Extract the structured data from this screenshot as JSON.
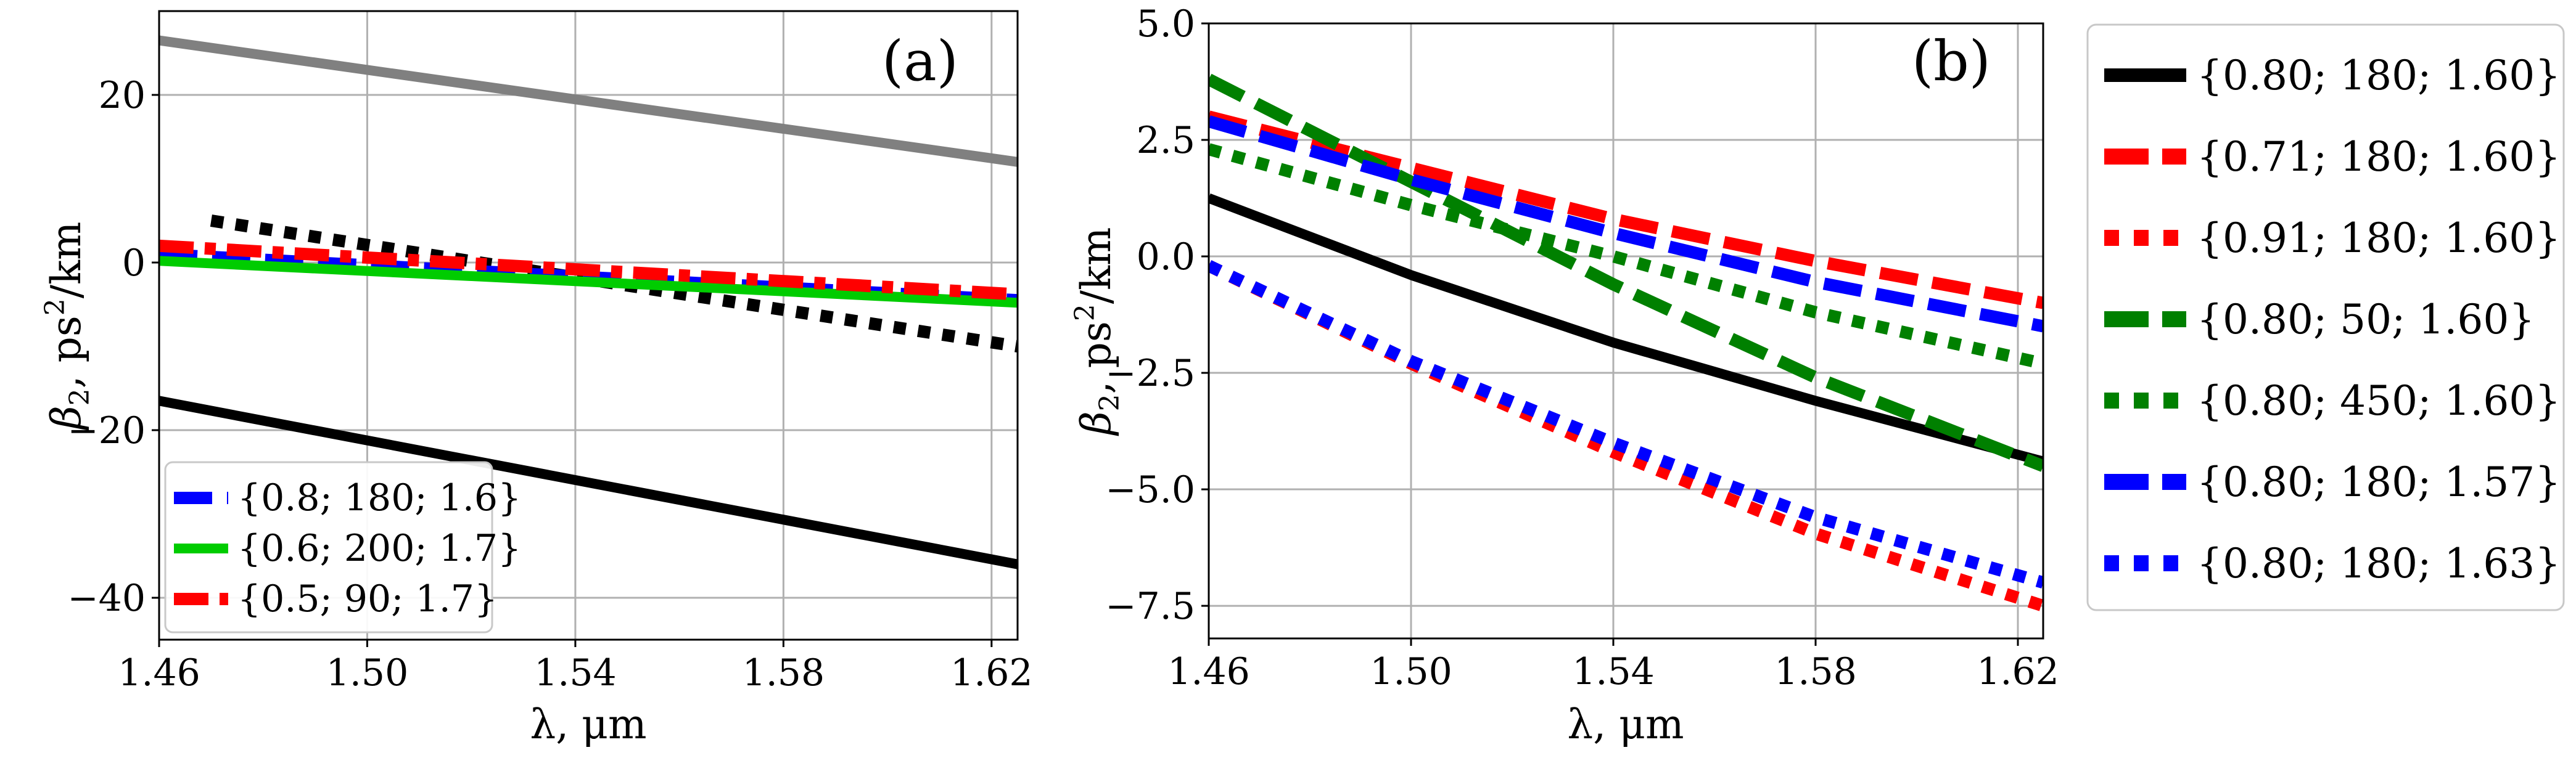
{
  "chart_data": [
    {
      "type": "line",
      "panel": "(a)",
      "xlabel": "λ, μm",
      "ylabel_main": "β",
      "ylabel_sub": "2",
      "ylabel_rest": ", ps",
      "ylabel_sup": "2",
      "ylabel_tail": "/km",
      "xlim": [
        1.46,
        1.625
      ],
      "ylim": [
        -45,
        30
      ],
      "xticks": [
        "1.46",
        "1.50",
        "1.54",
        "1.58",
        "1.62"
      ],
      "yticks": [
        "20",
        "0",
        "−20",
        "−40"
      ],
      "grid": true,
      "legend_position": "lower-left",
      "series": [
        {
          "color": "#808080",
          "style": "solid",
          "x": [
            1.46,
            1.625
          ],
          "y": [
            26.5,
            12.0
          ]
        },
        {
          "color": "#000000",
          "style": "solid",
          "x": [
            1.46,
            1.625
          ],
          "y": [
            -16.5,
            -36.0
          ]
        },
        {
          "color": "#000000",
          "style": "dotted",
          "x": [
            1.47,
            1.625
          ],
          "y": [
            5.0,
            -10.0
          ]
        },
        {
          "name": "{0.8; 180; 1.6}",
          "color": "#0000ff",
          "style": "dashed",
          "x": [
            1.46,
            1.625
          ],
          "y": [
            1.0,
            -4.5
          ]
        },
        {
          "name": "{0.6; 200; 1.7}",
          "color": "#00cc00",
          "style": "solid",
          "x": [
            1.46,
            1.625
          ],
          "y": [
            0.2,
            -4.8
          ]
        },
        {
          "name": "{0.5; 90; 1.7}",
          "color": "#ff0000",
          "style": "dashdot",
          "x": [
            1.46,
            1.625
          ],
          "y": [
            2.0,
            -3.8
          ]
        }
      ]
    },
    {
      "type": "line",
      "panel": "(b)",
      "xlabel": "λ, μm",
      "ylabel_main": "β",
      "ylabel_sub": "2",
      "ylabel_rest": ", ps",
      "ylabel_sup": "2",
      "ylabel_tail": "/km",
      "xlim": [
        1.46,
        1.625
      ],
      "ylim": [
        -8.2,
        5.0
      ],
      "xticks": [
        "1.46",
        "1.50",
        "1.54",
        "1.58",
        "1.62"
      ],
      "yticks": [
        "5.0",
        "2.5",
        "0.0",
        "−2.5",
        "−5.0",
        "−7.5"
      ],
      "grid": true,
      "legend_position": "outside-right",
      "series": [
        {
          "name": "{0.80; 180; 1.60}",
          "color": "#000000",
          "style": "solid",
          "x": [
            1.46,
            1.5,
            1.54,
            1.58,
            1.625
          ],
          "y": [
            1.25,
            -0.4,
            -1.85,
            -3.1,
            -4.4
          ]
        },
        {
          "name": "{0.71; 180; 1.60}",
          "color": "#ff0000",
          "style": "dashed",
          "x": [
            1.46,
            1.5,
            1.54,
            1.58,
            1.625
          ],
          "y": [
            3.0,
            1.9,
            0.8,
            -0.1,
            -1.0
          ]
        },
        {
          "name": "{0.91; 180; 1.60}",
          "color": "#ff0000",
          "style": "dotted",
          "x": [
            1.46,
            1.5,
            1.54,
            1.58,
            1.625
          ],
          "y": [
            -0.2,
            -2.3,
            -4.2,
            -5.95,
            -7.5
          ]
        },
        {
          "name": "{0.80; 50; 1.60}",
          "color": "#008000",
          "style": "dashed",
          "x": [
            1.46,
            1.5,
            1.54,
            1.58,
            1.625
          ],
          "y": [
            3.8,
            1.6,
            -0.6,
            -2.6,
            -4.5
          ]
        },
        {
          "name": "{0.80; 450; 1.60}",
          "color": "#008000",
          "style": "dotted",
          "x": [
            1.46,
            1.5,
            1.54,
            1.58,
            1.625
          ],
          "y": [
            2.3,
            1.1,
            0.0,
            -1.2,
            -2.3
          ]
        },
        {
          "name": "{0.80; 180; 1.57}",
          "color": "#0000ff",
          "style": "dashed",
          "x": [
            1.46,
            1.5,
            1.54,
            1.58,
            1.625
          ],
          "y": [
            2.9,
            1.65,
            0.5,
            -0.55,
            -1.5
          ]
        },
        {
          "name": "{0.80; 180; 1.63}",
          "color": "#0000ff",
          "style": "dotted",
          "x": [
            1.46,
            1.5,
            1.54,
            1.58,
            1.625
          ],
          "y": [
            -0.2,
            -2.25,
            -4.0,
            -5.6,
            -7.0
          ]
        }
      ]
    }
  ]
}
